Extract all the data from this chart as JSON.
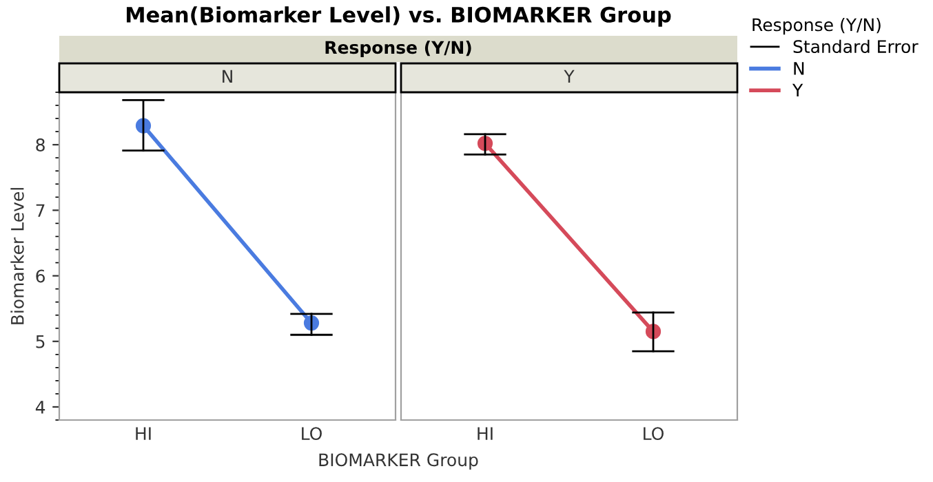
{
  "chart_data": [
    {
      "type": "line",
      "title": "Mean(Biomarker Level) vs. BIOMARKER Group",
      "subtitle": "Response (Y/N)",
      "xlabel": "BIOMARKER Group",
      "ylabel": "Biomarker Level",
      "annotations": [
        "N"
      ],
      "categories": [
        "HI",
        "LO"
      ],
      "ylim": [
        3.8,
        8.8
      ],
      "yticks": [
        4,
        5,
        6,
        7,
        8
      ],
      "marker": "circle",
      "series": [
        {
          "name": "N",
          "color": "#4a7be0",
          "values": [
            8.29,
            5.28
          ],
          "errors": [
            [
              7.91,
              8.68
            ],
            [
              5.1,
              5.42
            ]
          ]
        }
      ]
    },
    {
      "type": "line",
      "legend_title": "Response (Y/N)",
      "legend": "right",
      "annotations": [
        "Y",
        "Standard Error"
      ],
      "categories": [
        "HI",
        "LO"
      ],
      "ylim": [
        3.8,
        8.8
      ],
      "yticks": [
        4,
        5,
        6,
        7,
        8
      ],
      "tick_labels": "x",
      "marker": "circle",
      "series": [
        {
          "name": "Y",
          "color": "#d54a5a",
          "values": [
            8.02,
            5.15
          ],
          "errors": [
            [
              7.85,
              8.16
            ],
            [
              4.85,
              5.44
            ]
          ]
        }
      ]
    }
  ]
}
